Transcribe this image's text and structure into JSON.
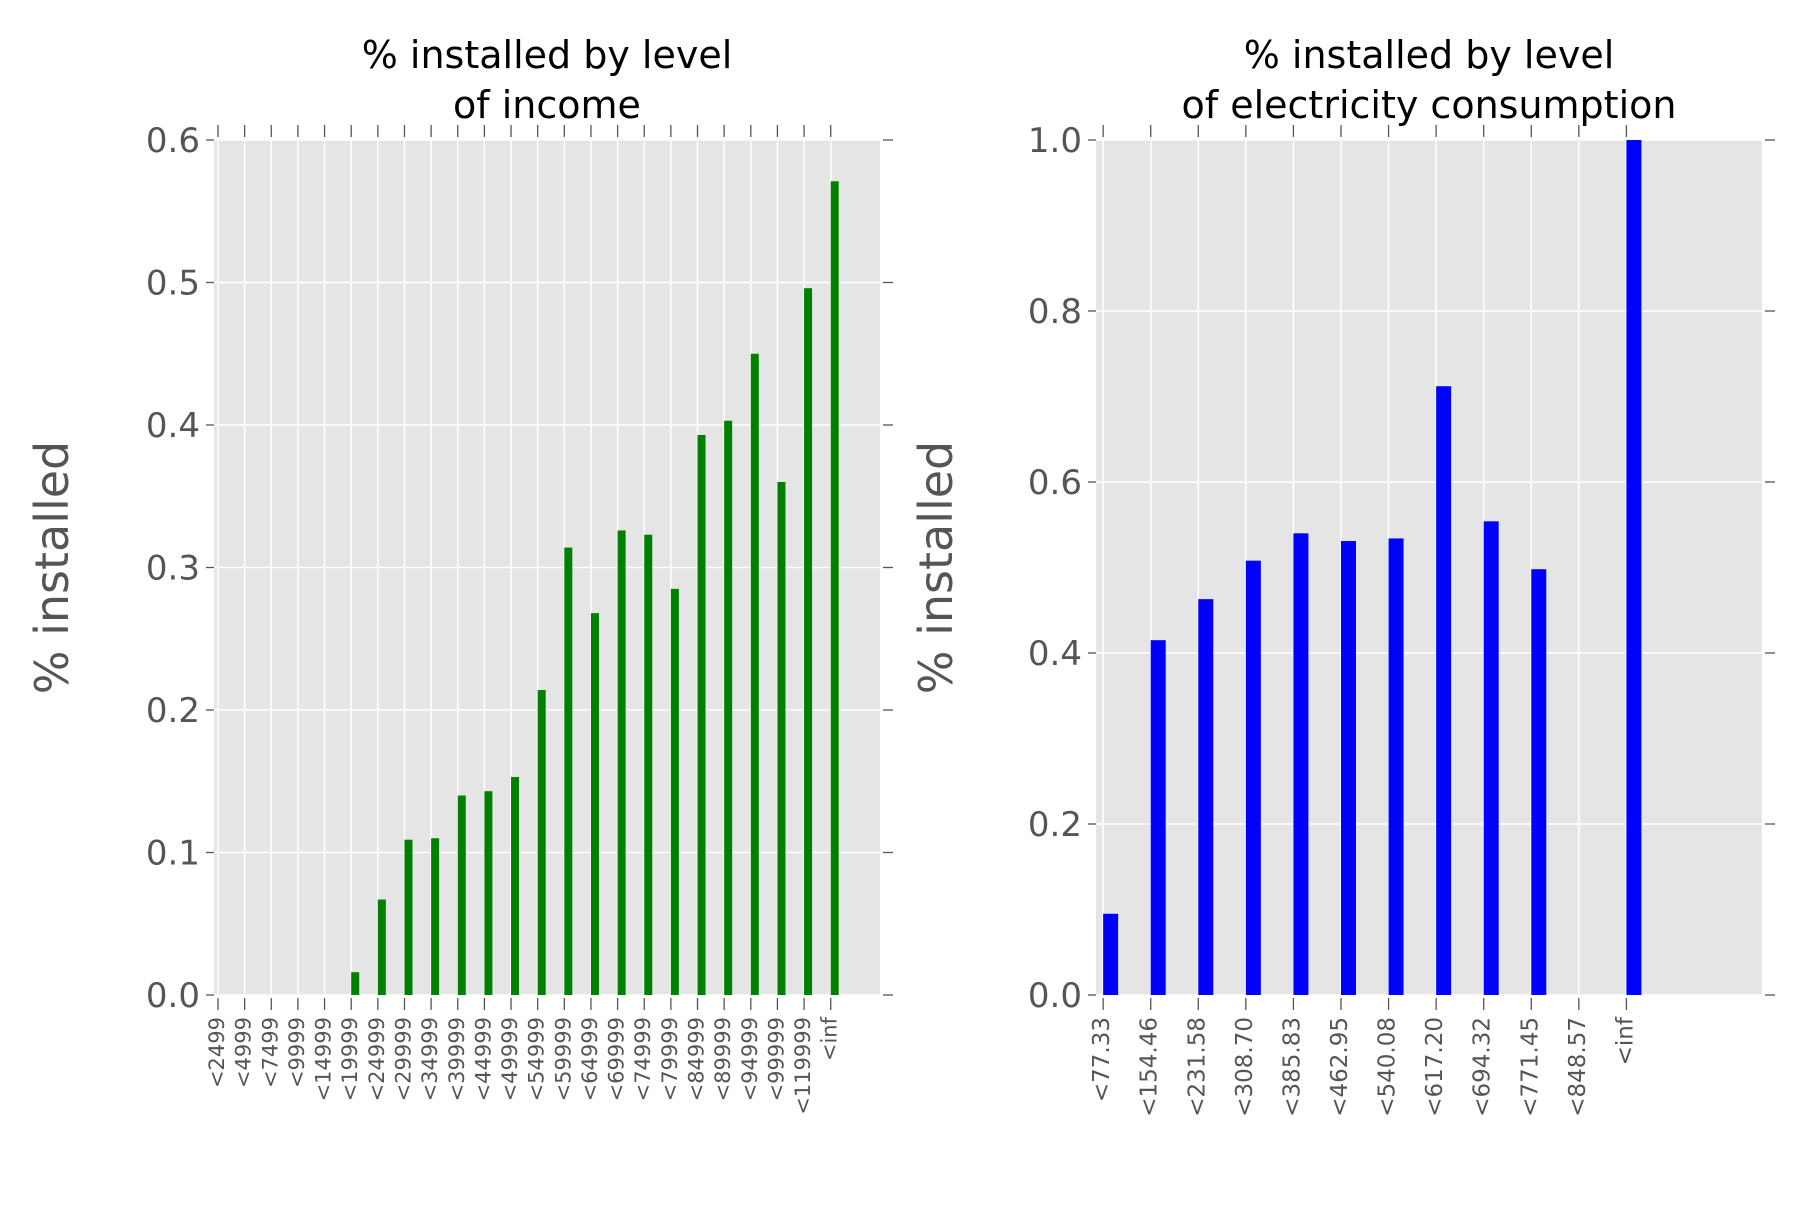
{
  "chart_data": [
    {
      "type": "bar",
      "title": "% installed by level\nof income",
      "xlabel": "",
      "ylabel": "% installed",
      "ylim": [
        0,
        0.6
      ],
      "yticks": [
        0.0,
        0.1,
        0.2,
        0.3,
        0.4,
        0.5,
        0.6
      ],
      "ytick_labels": [
        "0.0",
        "0.1",
        "0.2",
        "0.3",
        "0.4",
        "0.5",
        "0.6"
      ],
      "grid": true,
      "bar_color": "#008000",
      "categories": [
        "<2499",
        "<4999",
        "<7499",
        "<9999",
        "<14999",
        "<19999",
        "<24999",
        "<29999",
        "<34999",
        "<39999",
        "<44999",
        "<49999",
        "<54999",
        "<59999",
        "<64999",
        "<69999",
        "<74999",
        "<79999",
        "<84999",
        "<89999",
        "<94999",
        "<99999",
        "<119999",
        "<inf"
      ],
      "values": [
        0,
        0,
        0,
        0,
        0,
        0.016,
        0.067,
        0.109,
        0.11,
        0.14,
        0.143,
        0.153,
        0.214,
        0.314,
        0.268,
        0.326,
        0.323,
        0.285,
        0.393,
        0.403,
        0.45,
        0.36,
        0.496,
        0.571
      ]
    },
    {
      "type": "bar",
      "title": "% installed by level\nof electricity consumption",
      "xlabel": "",
      "ylabel": "% installed",
      "ylim": [
        0,
        1.0
      ],
      "yticks": [
        0.0,
        0.2,
        0.4,
        0.6,
        0.8,
        1.0
      ],
      "ytick_labels": [
        "0.0",
        "0.2",
        "0.4",
        "0.6",
        "0.8",
        "1.0"
      ],
      "grid": true,
      "bar_color": "#0000ff",
      "categories": [
        "<77.33",
        "<154.46",
        "<231.58",
        "<308.70",
        "<385.83",
        "<462.95",
        "<540.08",
        "<617.20",
        "<694.32",
        "<771.45",
        "<848.57",
        "<inf"
      ],
      "values": [
        0.095,
        0.415,
        0.463,
        0.508,
        0.54,
        0.531,
        0.534,
        0.712,
        0.554,
        0.498,
        0.0,
        1.0
      ]
    }
  ]
}
